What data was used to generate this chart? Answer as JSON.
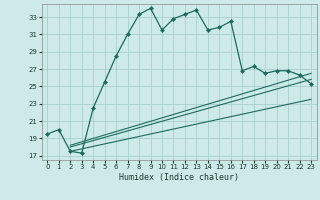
{
  "title": "",
  "xlabel": "Humidex (Indice chaleur)",
  "bg_color": "#ceeae8",
  "grid_color": "#aacfcc",
  "line_color": "#1a6b5e",
  "xlim": [
    -0.5,
    23.5
  ],
  "ylim": [
    16.5,
    34.5
  ],
  "xticks": [
    0,
    1,
    2,
    3,
    4,
    5,
    6,
    7,
    8,
    9,
    10,
    11,
    12,
    13,
    14,
    15,
    16,
    17,
    18,
    19,
    20,
    21,
    22,
    23
  ],
  "yticks": [
    17,
    19,
    21,
    23,
    25,
    27,
    29,
    31,
    33
  ],
  "main_line_x": [
    0,
    1,
    2,
    3,
    4,
    5,
    6,
    7,
    8,
    9,
    10,
    11,
    12,
    13,
    14,
    15,
    16,
    17,
    18,
    19,
    20,
    21,
    22,
    23
  ],
  "main_line_y": [
    19.5,
    20.0,
    17.5,
    17.3,
    22.5,
    25.5,
    28.5,
    31.0,
    33.3,
    34.0,
    31.5,
    32.8,
    33.3,
    33.8,
    31.5,
    31.8,
    32.5,
    26.8,
    27.3,
    26.5,
    26.8,
    26.8,
    26.3,
    25.3
  ],
  "ref_line1_x": [
    2,
    23
  ],
  "ref_line1_y": [
    18.0,
    25.8
  ],
  "ref_line2_x": [
    2,
    23
  ],
  "ref_line2_y": [
    17.5,
    23.5
  ],
  "ref_line3_x": [
    2,
    23
  ],
  "ref_line3_y": [
    18.2,
    26.5
  ]
}
